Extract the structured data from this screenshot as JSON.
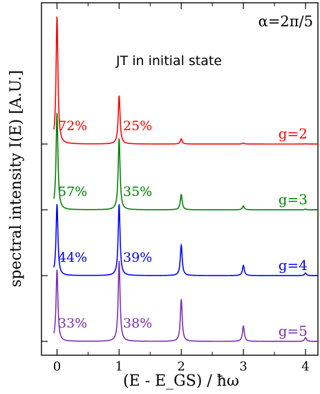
{
  "chart_data": {
    "type": "line",
    "annotation_alpha": "α=2π/5",
    "annotation_note": "JT in initial state",
    "ylabel": "spectral intensity I(E) [A.U.]",
    "xlabel": "(E - E_GS) / ħω",
    "x_ticks": [
      "0",
      "1",
      "2",
      "3",
      "4"
    ],
    "xlim": [
      -0.25,
      4.2
    ],
    "grid": false,
    "series": [
      {
        "name": "g=2",
        "color": "#ff0000",
        "peaks": [
          {
            "x": 0,
            "height": 1.0
          },
          {
            "x": 1,
            "height": 0.38
          },
          {
            "x": 2,
            "height": 0.04
          },
          {
            "x": 3,
            "height": 0.008
          },
          {
            "x": 4,
            "height": 0.002
          }
        ],
        "labels": [
          "72%",
          "25%"
        ]
      },
      {
        "name": "g=3",
        "color": "#008000",
        "peaks": [
          {
            "x": 0,
            "height": 0.76
          },
          {
            "x": 1,
            "height": 0.56
          },
          {
            "x": 2,
            "height": 0.12
          },
          {
            "x": 3,
            "height": 0.03
          },
          {
            "x": 4,
            "height": 0.005
          }
        ],
        "labels": [
          "57%",
          "35%"
        ]
      },
      {
        "name": "g=4",
        "color": "#0000ff",
        "peaks": [
          {
            "x": 0,
            "height": 0.56
          },
          {
            "x": 1,
            "height": 0.56
          },
          {
            "x": 2,
            "height": 0.24
          },
          {
            "x": 3,
            "height": 0.08
          },
          {
            "x": 4,
            "height": 0.02
          }
        ],
        "labels": [
          "44%",
          "39%"
        ]
      },
      {
        "name": "g=5",
        "color": "#7b2bb5",
        "peaks": [
          {
            "x": 0,
            "height": 0.56
          },
          {
            "x": 1,
            "height": 0.63
          },
          {
            "x": 2,
            "height": 0.33
          },
          {
            "x": 3,
            "height": 0.12
          },
          {
            "x": 4,
            "height": 0.03
          }
        ],
        "labels": [
          "33%",
          "38%"
        ]
      }
    ]
  }
}
